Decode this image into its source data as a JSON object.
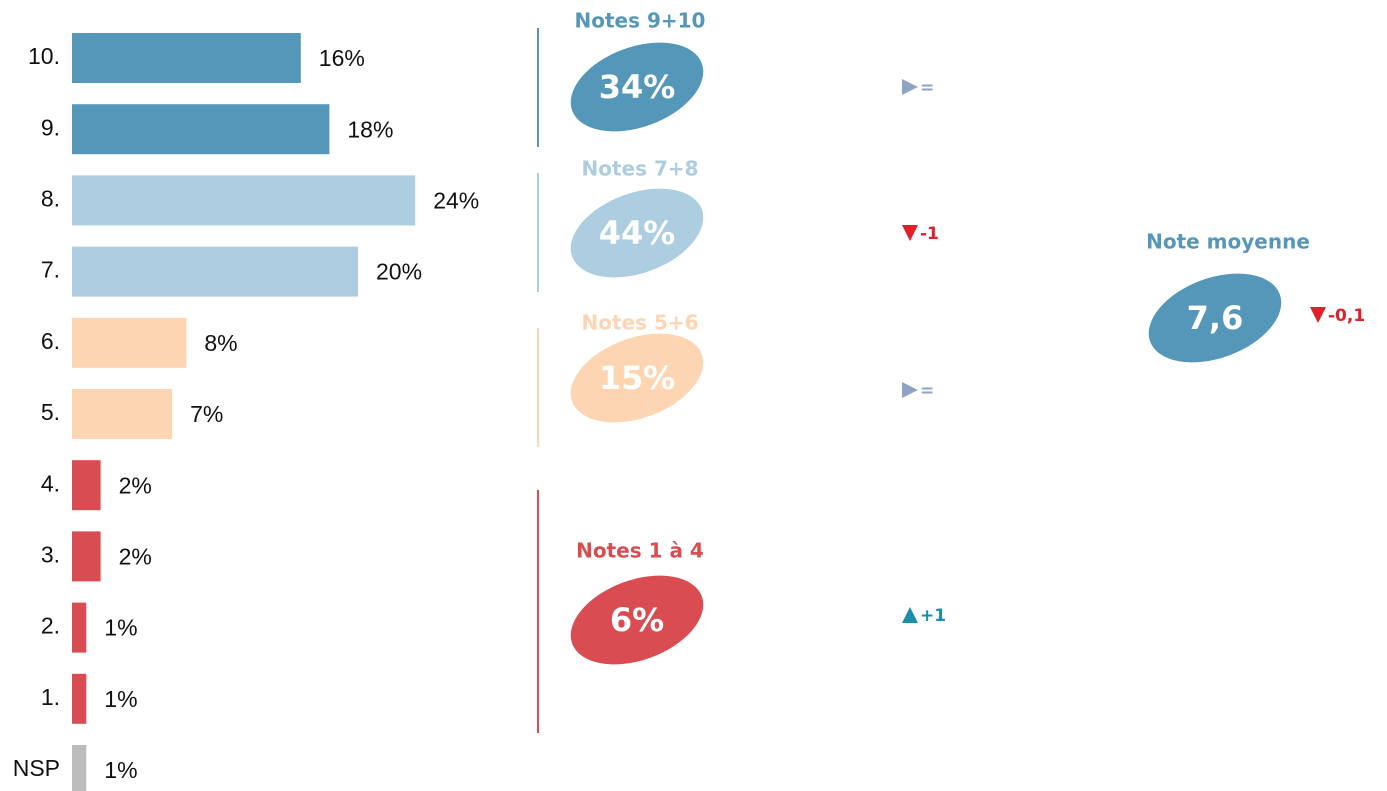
{
  "chart_data": {
    "type": "bar",
    "categories": [
      "10.",
      "9.",
      "8.",
      "7.",
      "6.",
      "5.",
      "4.",
      "3.",
      "2.",
      "1.",
      "NSP"
    ],
    "values": [
      16,
      18,
      24,
      20,
      8,
      7,
      2,
      2,
      1,
      1,
      1
    ],
    "value_labels": [
      "16%",
      "18%",
      "24%",
      "20%",
      "8%",
      "7%",
      "2%",
      "2%",
      "1%",
      "1%",
      "1%"
    ],
    "colors": [
      "#5597b9",
      "#5597b9",
      "#adcde0",
      "#adcde0",
      "#fdd5b3",
      "#fdd5b3",
      "#d94c51",
      "#d94c51",
      "#d94c51",
      "#d94c51",
      "#bdbdbd"
    ],
    "groups": [
      {
        "label": "Notes 9+10",
        "value": 34,
        "value_label": "34%",
        "color": "#5597b9",
        "change": "=",
        "trend": "right",
        "trend_color": "#8fa3c4"
      },
      {
        "label": "Notes 7+8",
        "value": 44,
        "value_label": "44%",
        "color": "#adcde0",
        "change": "-1",
        "trend": "down",
        "trend_color": "#e0202a"
      },
      {
        "label": "Notes 5+6",
        "value": 15,
        "value_label": "15%",
        "color": "#fdd5b3",
        "change": "=",
        "trend": "right",
        "trend_color": "#8fa3c4"
      },
      {
        "label": "Notes 1 à 4",
        "value": 6,
        "value_label": "6%",
        "color": "#d94c51",
        "change": "+1",
        "trend": "up",
        "trend_color": "#1a8fa8"
      }
    ],
    "mean": {
      "label": "Note moyenne",
      "value": 7.6,
      "value_label": "7,6",
      "color": "#5597b9",
      "change": "-0,1",
      "trend": "down",
      "trend_color": "#e0202a"
    }
  }
}
